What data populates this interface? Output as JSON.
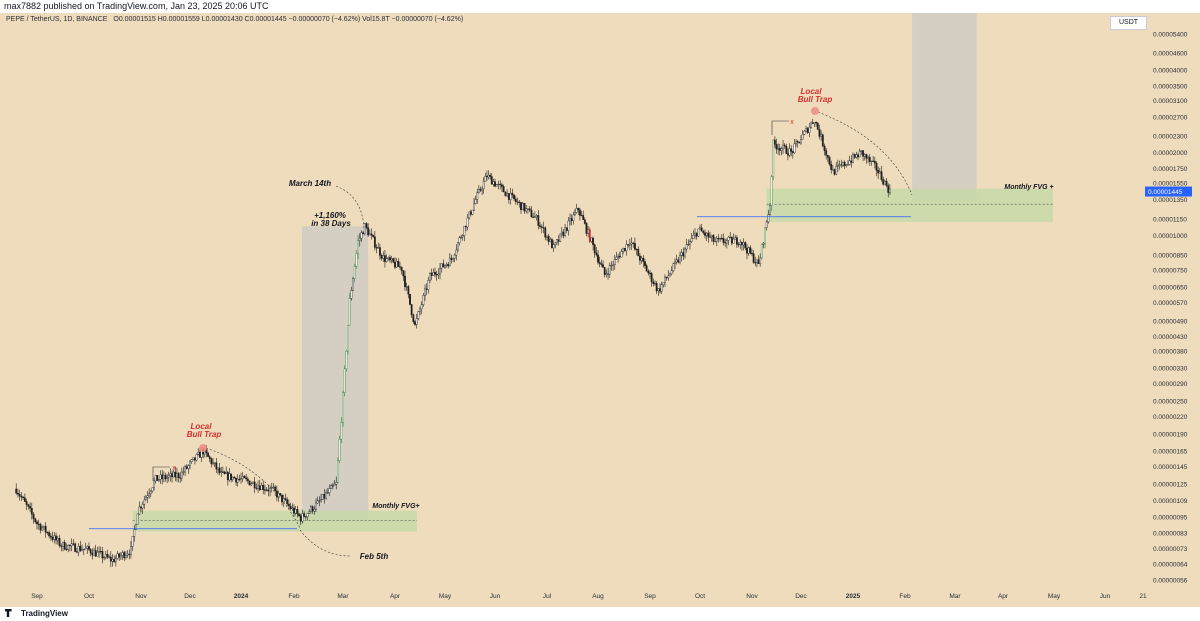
{
  "header": {
    "published": "max7882 published on TradingView.com, Jan 23, 2025 20:06 UTC"
  },
  "legend": {
    "symbol": "PEPE / TetherUS, 1D, BINANCE",
    "ohlc": "O0.00001515 H0.00001559 L0.00001430 C0.00001445 −0.00000070 (−4.62%) Vol15.8T −0.00000070 (−4.62%)"
  },
  "currency_label": "USDT",
  "footer": {
    "brand": "TradingView"
  },
  "colors": {
    "background": "#eedcbc",
    "candle": "#1f1f1f",
    "candle_up_accent": "#2e7d32",
    "candle_down_accent": "#c62828",
    "zone_fill": "#c7d9a8",
    "shade_fill": "#d0ccc4",
    "annotation_red": "#d32f2f",
    "price_label": "#2962ff",
    "level_line": "#2962ff"
  },
  "chart_data": {
    "type": "candlestick",
    "title": "",
    "xlabel": "",
    "ylabel": "",
    "scale": "log",
    "ylim": [
      5.3e-06,
      6e-06
    ],
    "x_ticks": [
      "Sep",
      "Oct",
      "Nov",
      "Dec",
      "2024",
      "Feb",
      "Mar",
      "Apr",
      "May",
      "Jun",
      "Jul",
      "Aug",
      "Sep",
      "Oct",
      "Nov",
      "Dec",
      "2025",
      "Feb",
      "Mar",
      "Apr",
      "May",
      "Jun",
      "21"
    ],
    "y_ticks": [
      "0.00005400",
      "0.00004600",
      "0.00004000",
      "0.00003500",
      "0.00003100",
      "0.00002700",
      "0.00002300",
      "0.00002000",
      "0.00001750",
      "0.00001550",
      "0.00001350",
      "0.00001150",
      "0.00001000",
      "0.00000850",
      "0.00000750",
      "0.00000650",
      "0.00000570",
      "0.00000490",
      "0.00000430",
      "0.00000380",
      "0.00000330",
      "0.00000290",
      "0.00000250",
      "0.00000220",
      "0.00000190",
      "0.00000165",
      "0.00000145",
      "0.00000125",
      "0.00000109",
      "0.00000095",
      "0.00000083",
      "0.00000073",
      "0.00000064",
      "0.00000056"
    ],
    "current_price": "0.00001445",
    "key_path": [
      [
        "2023-08-20",
        1.2e-06
      ],
      [
        "2023-09-01",
        9e-07
      ],
      [
        "2023-09-15",
        7.5e-07
      ],
      [
        "2023-10-01",
        7.2e-07
      ],
      [
        "2023-10-15",
        6.6e-07
      ],
      [
        "2023-10-26",
        7.2e-07
      ],
      [
        "2023-10-30",
        1e-06
      ],
      [
        "2023-11-10",
        1.3e-06
      ],
      [
        "2023-11-25",
        1.35e-06
      ],
      [
        "2023-12-09",
        1.65e-06
      ],
      [
        "2023-12-20",
        1.35e-06
      ],
      [
        "2024-01-05",
        1.28e-06
      ],
      [
        "2024-01-20",
        1.18e-06
      ],
      [
        "2024-02-05",
        9.4e-07
      ],
      [
        "2024-02-15",
        1.06e-06
      ],
      [
        "2024-02-26",
        1.25e-06
      ],
      [
        "2024-03-01",
        2.6e-06
      ],
      [
        "2024-03-05",
        5.8e-06
      ],
      [
        "2024-03-10",
        9.5e-06
      ],
      [
        "2024-03-14",
        1.08e-05
      ],
      [
        "2024-03-25",
        8.3e-06
      ],
      [
        "2024-04-05",
        7.6e-06
      ],
      [
        "2024-04-13",
        4.7e-06
      ],
      [
        "2024-04-22",
        7.1e-06
      ],
      [
        "2024-05-05",
        8.2e-06
      ],
      [
        "2024-05-20",
        1.35e-05
      ],
      [
        "2024-05-27",
        1.65e-05
      ],
      [
        "2024-06-10",
        1.38e-05
      ],
      [
        "2024-06-25",
        1.15e-05
      ],
      [
        "2024-07-05",
        9e-06
      ],
      [
        "2024-07-20",
        1.25e-05
      ],
      [
        "2024-08-05",
        7.2e-06
      ],
      [
        "2024-08-20",
        9.6e-06
      ],
      [
        "2024-09-06",
        6.3e-06
      ],
      [
        "2024-09-20",
        8.5e-06
      ],
      [
        "2024-09-30",
        1.05e-05
      ],
      [
        "2024-10-10",
        9.5e-06
      ],
      [
        "2024-10-25",
        9.6e-06
      ],
      [
        "2024-11-05",
        7.8e-06
      ],
      [
        "2024-11-12",
        1.3e-05
      ],
      [
        "2024-11-14",
        2.15e-05
      ],
      [
        "2024-11-25",
        2e-05
      ],
      [
        "2024-12-09",
        2.65e-05
      ],
      [
        "2024-12-20",
        1.7e-05
      ],
      [
        "2025-01-06",
        2e-05
      ],
      [
        "2025-01-15",
        1.75e-05
      ],
      [
        "2025-01-23",
        1.445e-05
      ]
    ]
  },
  "annotations": {
    "bull_trap_1_line1": "Local",
    "bull_trap_1_line2": "Bull Trap",
    "bull_trap_2_line1": "Local",
    "bull_trap_2_line2": "Bull Trap",
    "march": "March 14th",
    "gain_line1": "+1,160%",
    "gain_line2": "in 38 Days",
    "fvg_1": "Monthly FVG+",
    "fvg_2": "Monthly FVG +",
    "feb": "Feb 5th",
    "x_mark": "x"
  }
}
